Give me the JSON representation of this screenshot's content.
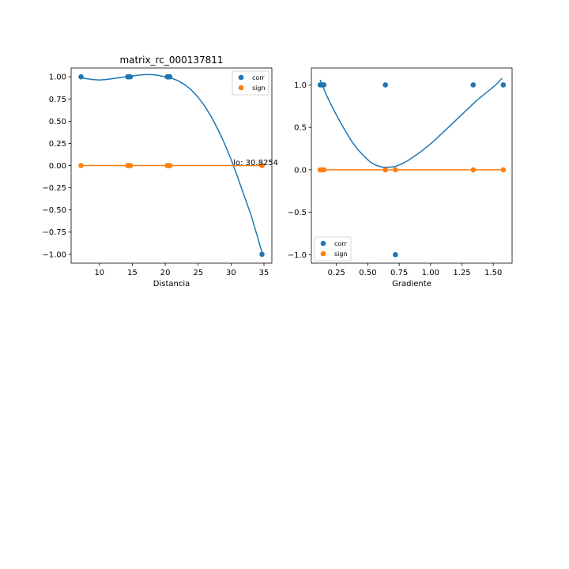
{
  "chart_data": [
    {
      "type": "scatter",
      "title": "matrix_rc_000137811",
      "xlabel": "Distancia",
      "ylabel": "",
      "xlim": [
        5.7,
        36.2
      ],
      "ylim": [
        -1.1,
        1.1
      ],
      "xticks": [
        10,
        15,
        20,
        25,
        30,
        35
      ],
      "yticks": [
        -1.0,
        -0.75,
        -0.5,
        -0.25,
        0.0,
        0.25,
        0.5,
        0.75,
        1.0
      ],
      "ytick_labels": [
        "−1.00",
        "−0.75",
        "−0.50",
        "−0.25",
        "0.00",
        "0.25",
        "0.50",
        "0.75",
        "1.00"
      ],
      "legend": "top-right",
      "series": [
        {
          "name": "corr",
          "color": "#1f77b4",
          "x": [
            7.2,
            14.3,
            14.5,
            14.7,
            20.3,
            20.5,
            20.7,
            34.7
          ],
          "y": [
            1,
            1,
            1,
            1,
            1,
            1,
            1,
            -1
          ],
          "fit": {
            "x": [
              7.2,
              8,
              9,
              10,
              11,
              12,
              13,
              14,
              15,
              16,
              17,
              18,
              19,
              20,
              21,
              22,
              23,
              24,
              25,
              26,
              27,
              28,
              29,
              30,
              31,
              32,
              33,
              34,
              34.7
            ],
            "y": [
              0.99,
              0.98,
              0.97,
              0.965,
              0.97,
              0.98,
              0.99,
              1.0,
              1.01,
              1.02,
              1.025,
              1.025,
              1.015,
              1.0,
              0.985,
              0.955,
              0.91,
              0.85,
              0.77,
              0.67,
              0.55,
              0.41,
              0.25,
              0.07,
              -0.13,
              -0.34,
              -0.55,
              -0.8,
              -0.98
            ]
          }
        },
        {
          "name": "sign",
          "color": "#ff7f0e",
          "x": [
            7.2,
            14.3,
            14.5,
            14.7,
            20.3,
            20.5,
            20.7,
            34.7
          ],
          "y": [
            0,
            0,
            0,
            0,
            0,
            0,
            0,
            0
          ],
          "fit": {
            "x": [
              7.2,
              34.7
            ],
            "y": [
              0,
              0
            ]
          }
        }
      ],
      "annotations": [
        {
          "text": "lo: 30.8254",
          "x": 30.8254,
          "y": 0.0
        }
      ]
    },
    {
      "type": "scatter",
      "title": "",
      "xlabel": "Gradiente",
      "ylabel": "",
      "xlim": [
        0.05,
        1.65
      ],
      "ylim": [
        -1.1,
        1.2
      ],
      "xticks": [
        0.25,
        0.5,
        0.75,
        1.0,
        1.25,
        1.5
      ],
      "xtick_labels": [
        "0.25",
        "0.50",
        "0.75",
        "1.00",
        "1.25",
        "1.50"
      ],
      "yticks": [
        -1.0,
        -0.5,
        0.0,
        0.5,
        1.0
      ],
      "ytick_labels": [
        "−1.0",
        "−0.5",
        "0.0",
        "0.5",
        "1.0"
      ],
      "legend": "bottom-left",
      "series": [
        {
          "name": "corr",
          "color": "#1f77b4",
          "x": [
            0.12,
            0.13,
            0.15,
            0.64,
            0.72,
            1.34,
            1.58
          ],
          "y": [
            1,
            1,
            1,
            1,
            -1,
            1,
            1
          ],
          "fit": {
            "x": [
              0.12,
              0.17,
              0.22,
              0.27,
              0.32,
              0.37,
              0.42,
              0.47,
              0.52,
              0.57,
              0.62,
              0.67,
              0.72,
              0.77,
              0.82,
              0.87,
              0.92,
              0.97,
              1.02,
              1.07,
              1.12,
              1.17,
              1.22,
              1.27,
              1.32,
              1.37,
              1.42,
              1.47,
              1.52,
              1.57
            ],
            "y": [
              1.06,
              0.88,
              0.73,
              0.59,
              0.46,
              0.34,
              0.24,
              0.16,
              0.09,
              0.05,
              0.03,
              0.03,
              0.04,
              0.07,
              0.11,
              0.16,
              0.21,
              0.27,
              0.33,
              0.4,
              0.47,
              0.54,
              0.61,
              0.68,
              0.75,
              0.82,
              0.88,
              0.94,
              1.0,
              1.08
            ]
          }
        },
        {
          "name": "sign",
          "color": "#ff7f0e",
          "x": [
            0.12,
            0.13,
            0.15,
            0.64,
            0.72,
            1.34,
            1.58
          ],
          "y": [
            0,
            0,
            0,
            0,
            0,
            0,
            0
          ],
          "fit": {
            "x": [
              0.12,
              1.58
            ],
            "y": [
              0,
              0
            ]
          }
        }
      ]
    }
  ]
}
